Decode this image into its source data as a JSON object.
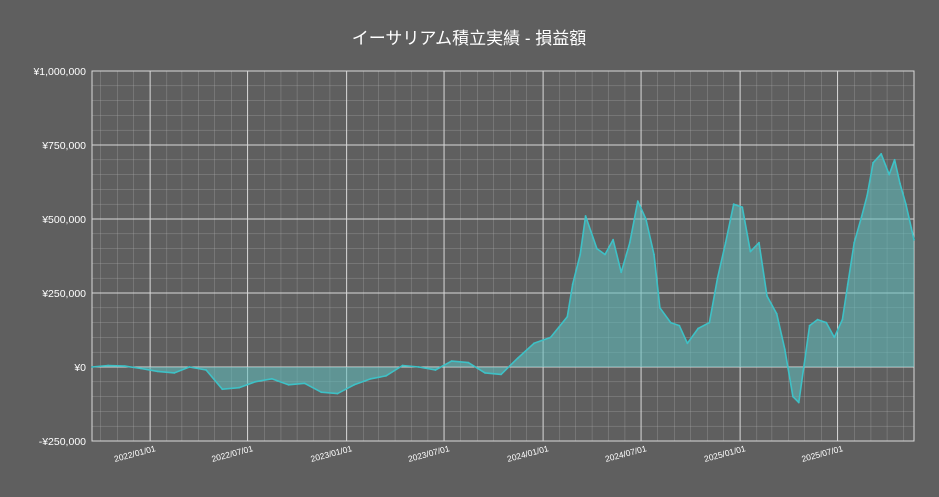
{
  "chart_data": {
    "type": "area",
    "title": "イーサリアム積立実績 - 損益額",
    "xlabel": "",
    "ylabel": "",
    "x_range": [
      "2021-09-15",
      "2025-11-20"
    ],
    "ylim": [
      -250000,
      1000000
    ],
    "yticks": [
      -250000,
      0,
      250000,
      500000,
      750000,
      1000000
    ],
    "ytick_labels": [
      "-¥250,000",
      "¥0",
      "¥250,000",
      "¥500,000",
      "¥750,000",
      "¥1,000,000"
    ],
    "xticks": [
      "2022-01-01",
      "2022-07-01",
      "2023-01-01",
      "2023-07-01",
      "2024-01-01",
      "2024-07-01",
      "2025-01-01",
      "2025-07-01"
    ],
    "xtick_labels": [
      "2022/01/01",
      "2022/07/01",
      "2023/01/01",
      "2023/07/01",
      "2024/01/01",
      "2024/07/01",
      "2025/01/01",
      "2025/07/01"
    ],
    "grid": true,
    "colors": {
      "background": "#5f5f5f",
      "line": "#3ec1c6",
      "fill": "#5fbfbf",
      "grid": "#b4b4b4",
      "text": "#ffffff"
    },
    "series": [
      {
        "x": [
          "2021-09-15",
          "2021-10-15",
          "2021-11-15",
          "2021-12-15",
          "2022-01-15",
          "2022-02-15",
          "2022-03-15",
          "2022-04-15",
          "2022-05-15",
          "2022-06-15",
          "2022-07-15",
          "2022-08-15",
          "2022-09-15",
          "2022-10-15",
          "2022-11-15",
          "2022-12-15",
          "2023-01-15",
          "2023-02-15",
          "2023-03-15",
          "2023-04-15",
          "2023-05-15",
          "2023-06-15",
          "2023-07-15",
          "2023-08-15",
          "2023-09-15",
          "2023-10-15",
          "2023-11-15",
          "2023-12-15",
          "2024-01-15",
          "2024-02-15",
          "2024-02-25",
          "2024-03-10",
          "2024-03-20",
          "2024-04-10",
          "2024-04-25",
          "2024-05-10",
          "2024-05-25",
          "2024-06-10",
          "2024-06-25",
          "2024-07-10",
          "2024-07-25",
          "2024-08-05",
          "2024-08-25",
          "2024-09-10",
          "2024-09-25",
          "2024-10-15",
          "2024-11-05",
          "2024-11-20",
          "2024-12-05",
          "2024-12-20",
          "2025-01-05",
          "2025-01-20",
          "2025-02-05",
          "2025-02-20",
          "2025-03-10",
          "2025-03-25",
          "2025-04-09",
          "2025-04-20",
          "2025-05-10",
          "2025-05-25",
          "2025-06-10",
          "2025-06-25",
          "2025-07-10",
          "2025-07-20",
          "2025-08-01",
          "2025-08-15",
          "2025-08-25",
          "2025-09-05",
          "2025-09-20",
          "2025-10-05",
          "2025-10-15",
          "2025-10-25",
          "2025-11-05",
          "2025-11-15",
          "2025-11-20"
        ],
        "y": [
          0,
          5000,
          3000,
          -5000,
          -15000,
          -20000,
          0,
          -10000,
          -75000,
          -70000,
          -50000,
          -40000,
          -60000,
          -55000,
          -85000,
          -90000,
          -60000,
          -40000,
          -30000,
          5000,
          0,
          -10000,
          20000,
          15000,
          -20000,
          -25000,
          30000,
          80000,
          100000,
          170000,
          280000,
          380000,
          510000,
          400000,
          380000,
          430000,
          320000,
          420000,
          560000,
          500000,
          380000,
          200000,
          150000,
          140000,
          80000,
          130000,
          150000,
          300000,
          420000,
          550000,
          540000,
          390000,
          420000,
          240000,
          180000,
          60000,
          -100000,
          -120000,
          140000,
          160000,
          150000,
          100000,
          160000,
          280000,
          420000,
          510000,
          580000,
          690000,
          720000,
          650000,
          700000,
          620000,
          550000,
          470000,
          430000
        ]
      }
    ]
  }
}
